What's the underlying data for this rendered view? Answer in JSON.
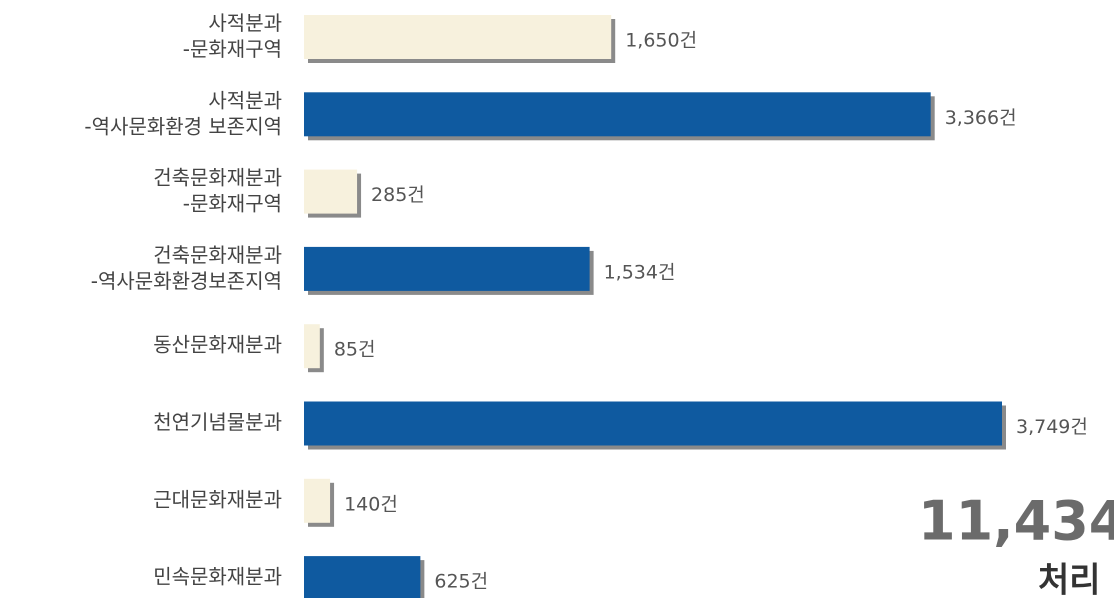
{
  "chart_data": {
    "type": "bar",
    "orientation": "horizontal",
    "categories": [
      "사적분과\n-문화재구역",
      "사적분과\n-역사문화환경 보존지역",
      "건축문화재분과\n-문화재구역",
      "건축문화재분과\n-역사문화환경보존지역",
      "동산문화재분과",
      "천연기념물분과",
      "근대문화재분과",
      "민속문화재분과"
    ],
    "values": [
      1650,
      3366,
      285,
      1534,
      85,
      3749,
      140,
      625
    ],
    "value_labels": [
      "1,650건",
      "3,366건",
      "285건",
      "1,534건",
      "85건",
      "3,749건",
      "140건",
      "625건"
    ],
    "colors": [
      "#f7f1dd",
      "#0f5aa0",
      "#f7f1dd",
      "#0f5aa0",
      "#f7f1dd",
      "#0f5aa0",
      "#f7f1dd",
      "#0f5aa0"
    ],
    "annotations": [
      "11,434",
      "처리"
    ]
  }
}
